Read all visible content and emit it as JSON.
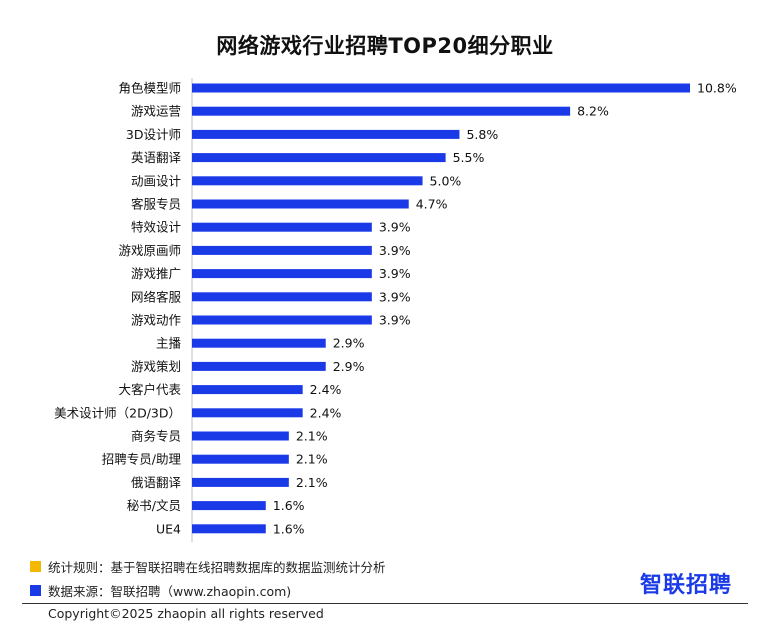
{
  "chart_data": {
    "type": "bar",
    "orientation": "horizontal",
    "title": "网络游戏行业招聘TOP20细分职业",
    "categories": [
      "角色模型师",
      "游戏运营",
      "3D设计师",
      "英语翻译",
      "动画设计",
      "客服专员",
      "特效设计",
      "游戏原画师",
      "游戏推广",
      "网络客服",
      "游戏动作",
      "主播",
      "游戏策划",
      "大客户代表",
      "美术设计师（2D/3D）",
      "商务专员",
      "招聘专员/助理",
      "俄语翻译",
      "秘书/文员",
      "UE4"
    ],
    "values": [
      10.8,
      8.2,
      5.8,
      5.5,
      5.0,
      4.7,
      3.9,
      3.9,
      3.9,
      3.9,
      3.9,
      2.9,
      2.9,
      2.4,
      2.4,
      2.1,
      2.1,
      2.1,
      1.6,
      1.6
    ],
    "value_labels": [
      "10.8%",
      "8.2%",
      "5.8%",
      "5.5%",
      "5.0%",
      "4.7%",
      "3.9%",
      "3.9%",
      "3.9%",
      "3.9%",
      "3.9%",
      "2.9%",
      "2.9%",
      "2.4%",
      "2.4%",
      "2.1%",
      "2.1%",
      "2.1%",
      "1.6%",
      "1.6%"
    ],
    "unit": "%",
    "xlim": [
      0,
      10.8
    ],
    "bar_color": "#1a3ae8"
  },
  "notes": {
    "rule": "统计规则：基于智联招聘在线招聘数据库的数据监测统计分析",
    "rule_color": "#f5b800",
    "source": "数据来源：智联招聘（www.zhaopin.com)",
    "source_color": "#1a3ae8"
  },
  "logo": {
    "text": "智联招聘"
  },
  "footer": {
    "copyright": "Copyright©2025 zhaopin all rights reserved"
  }
}
